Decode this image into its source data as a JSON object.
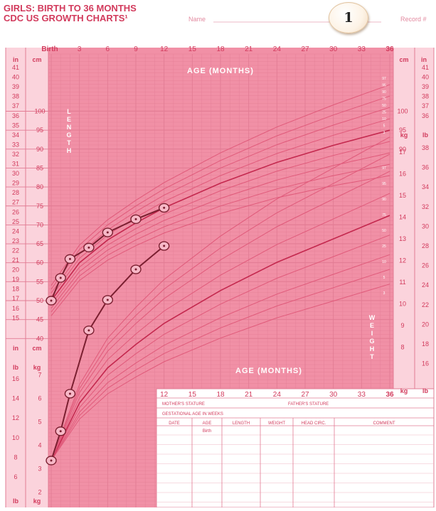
{
  "header": {
    "title_line1": "GIRLS: BIRTH TO 36 MONTHS",
    "title_line2": "CDC US GROWTH CHARTS¹",
    "name_label": "Name",
    "record_label": "Record #"
  },
  "badge": "1",
  "colors": {
    "grid_fill": "#f6a4b6",
    "grid_line": "#e27c94",
    "text": "#d23a5c",
    "curve": "#c4284e",
    "plot": "#7a1f30"
  },
  "top_axis_labels": [
    "Birth",
    "3",
    "6",
    "9",
    "12",
    "15",
    "18",
    "21",
    "24",
    "27",
    "30",
    "33",
    "36"
  ],
  "bottom_axis_labels": [
    "12",
    "15",
    "18",
    "21",
    "24",
    "27",
    "30",
    "33",
    "36"
  ],
  "age_label_top": "AGE (MONTHS)",
  "age_label_bottom": "AGE (MONTHS)",
  "unit_labels": {
    "in": "in",
    "cm": "cm",
    "lb": "lb",
    "kg": "kg"
  },
  "length_letters": [
    "L",
    "E",
    "N",
    "G",
    "T",
    "H"
  ],
  "weight_letters": [
    "W",
    "E",
    "I",
    "G",
    "H",
    "T"
  ],
  "left_in_ticks": [
    "41",
    "40",
    "39",
    "38",
    "37",
    "36",
    "35",
    "34",
    "33",
    "32",
    "31",
    "30",
    "29",
    "28",
    "27",
    "26",
    "25",
    "24",
    "23",
    "22",
    "21",
    "20",
    "19",
    "18",
    "17",
    "16",
    "15"
  ],
  "left_cm_ticks": [
    "100",
    "95",
    "90",
    "85",
    "80",
    "75",
    "70",
    "65",
    "60",
    "55",
    "50",
    "45",
    "40"
  ],
  "left_lb_ticks": [
    "16",
    "14",
    "12",
    "10",
    "8",
    "6"
  ],
  "left_kg_ticks": [
    "7",
    "6",
    "5",
    "4",
    "3",
    "2"
  ],
  "right_in_ticks": [
    "41",
    "40",
    "39",
    "38",
    "37",
    "36"
  ],
  "right_cm_ticks": [
    "100",
    "95",
    "90"
  ],
  "right_kg_ticks": [
    "17",
    "16",
    "15",
    "14",
    "13",
    "12",
    "11",
    "10",
    "9",
    "8"
  ],
  "right_lb_ticks": [
    "38",
    "36",
    "34",
    "32",
    "30",
    "28",
    "26",
    "24",
    "22",
    "20",
    "18",
    "16"
  ],
  "percentile_labels_length": [
    "97",
    "95",
    "90",
    "75",
    "50",
    "25",
    "10",
    "5",
    "3"
  ],
  "percentile_labels_weight": [
    "97",
    "95",
    "90",
    "75",
    "50",
    "25",
    "10",
    "5",
    "3"
  ],
  "table": {
    "mothers_stature": "MOTHER'S STATURE",
    "fathers_stature": "FATHER'S STATURE",
    "gestational_age": "GESTATIONAL AGE IN WEEKS",
    "columns": [
      "DATE",
      "AGE",
      "LENGTH",
      "WEIGHT",
      "HEAD CIRC.",
      "COMMENT"
    ],
    "first_row": [
      "",
      "Birth",
      "",
      "",
      "",
      ""
    ]
  },
  "chart_data": {
    "type": "line",
    "x_unit": "months",
    "xlim": [
      0,
      36
    ],
    "series": [
      {
        "measure": "length",
        "unit": "cm",
        "x": [
          0,
          1,
          2,
          4,
          6,
          9,
          12
        ],
        "y": [
          50,
          56,
          61,
          64,
          68,
          71.5,
          74.5
        ]
      },
      {
        "measure": "weight",
        "unit": "kg",
        "x": [
          0,
          1,
          2,
          4,
          6,
          9,
          12
        ],
        "y": [
          3.35,
          4.6,
          6.2,
          8.9,
          10.2,
          11.5,
          12.5
        ]
      }
    ],
    "length_ylim_cm": [
      40,
      102
    ],
    "weight_ylim_kg": [
      1.5,
      18
    ]
  }
}
